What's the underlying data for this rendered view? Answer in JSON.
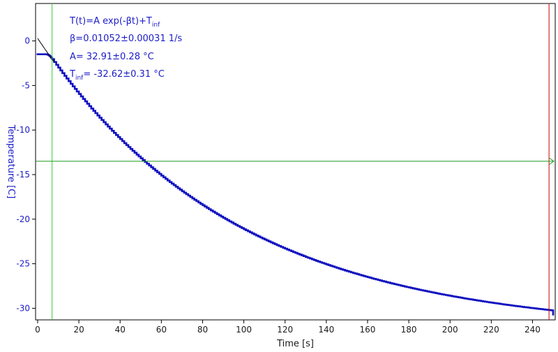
{
  "colors": {
    "data": "#1010c0",
    "fit": "#000000",
    "green_line": "#1a9a1a",
    "green_vline": "#33cc33",
    "red_line": "#cc0000",
    "axis_text_y": "#1c1cc8"
  },
  "chart_data": {
    "type": "line",
    "xlabel": "Time [s]",
    "ylabel": "Temperature [C]",
    "xlim": [
      -1,
      251
    ],
    "ylim": [
      -31.3,
      4.2
    ],
    "xticks": [
      0,
      20,
      40,
      60,
      80,
      100,
      120,
      140,
      160,
      180,
      200,
      220,
      240
    ],
    "yticks": [
      0,
      -5,
      -10,
      -15,
      -20,
      -25,
      -30
    ],
    "xtick_labels": [
      "0",
      "20",
      "40",
      "60",
      "80",
      "100",
      "120",
      "140",
      "160",
      "180",
      "200",
      "220",
      "240"
    ],
    "ytick_labels": [
      "0",
      "-5",
      "-10",
      "-15",
      "-20",
      "-25",
      "-30"
    ],
    "grid": false,
    "series": [
      {
        "model": "exponential",
        "A": 32.91,
        "beta": 0.01052,
        "T_inf": -32.62,
        "plateau_value": -1.5,
        "plateau_end_x": 4,
        "fit_start_x": 7,
        "x_end": 250,
        "end_drop_value": -30.8
      }
    ],
    "fit_line": {
      "x_start": 0,
      "x_end": 8
    },
    "reference_lines": {
      "green_vertical_x": 7,
      "red_vertical_x": 248,
      "green_horizontal_y": -13.5
    },
    "annotations": {
      "equation_main": "T(t)=A exp(-βt)+T",
      "equation_sub": "inf",
      "beta_text": "β=0.01052±0.00031 1/s",
      "a_text": "A= 32.91±0.28 °C",
      "tinf_main": "T",
      "tinf_sub": "inf",
      "tinf_value": "= -32.62±0.31 °C"
    }
  }
}
